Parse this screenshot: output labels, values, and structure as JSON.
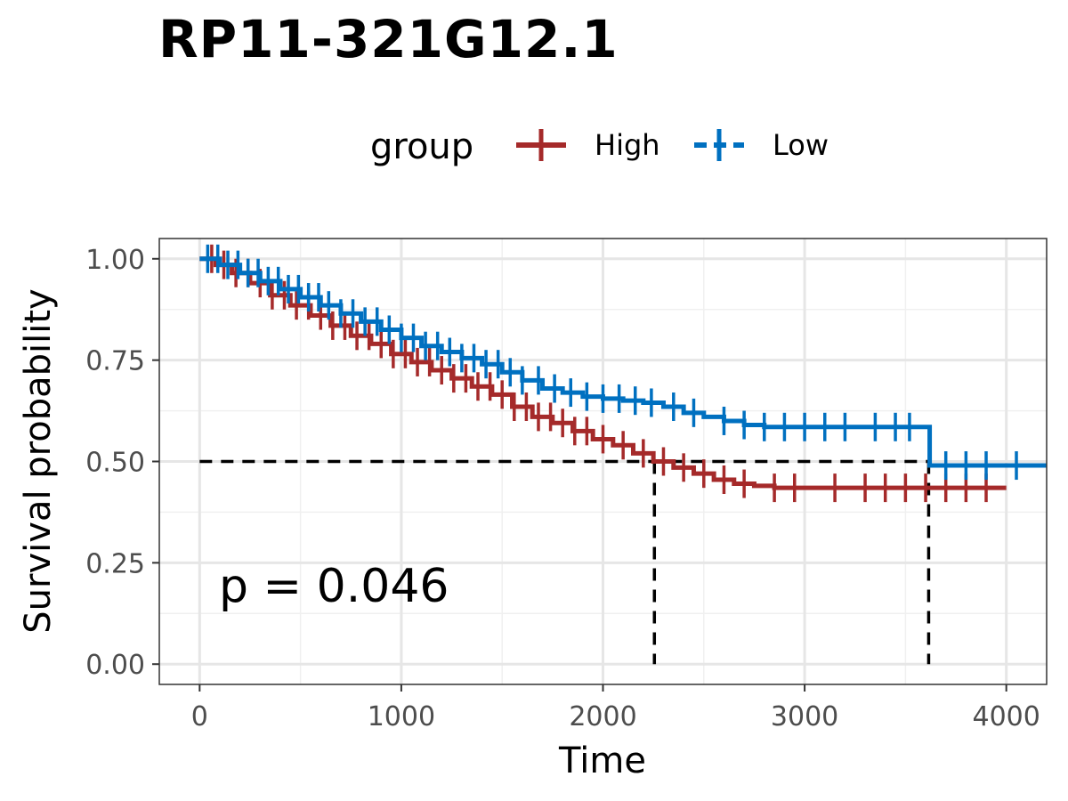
{
  "chart_data": {
    "type": "line",
    "subtype": "kaplan-meier",
    "title": "RP11-321G12.1",
    "xlabel": "Time",
    "ylabel": "Survival probability",
    "xlim": [
      -200,
      4200
    ],
    "ylim": [
      -0.05,
      1.05
    ],
    "x_ticks": [
      0,
      1000,
      2000,
      3000,
      4000
    ],
    "x_tick_labels": [
      "0",
      "1000",
      "2000",
      "3000",
      "4000"
    ],
    "y_ticks": [
      0,
      0.25,
      0.5,
      0.75,
      1.0
    ],
    "y_tick_labels": [
      "0.00",
      "0.25",
      "0.50",
      "0.75",
      "1.00"
    ],
    "grid": true,
    "legend": {
      "title": "group",
      "position": "top",
      "entries": [
        "High",
        "Low"
      ]
    },
    "annotation": "p = 0.046",
    "median_line": {
      "y": 0.5,
      "x": [
        2255,
        3615
      ]
    },
    "series": [
      {
        "name": "High",
        "color": "#A52A2A",
        "x": [
          0,
          80,
          160,
          250,
          350,
          450,
          550,
          650,
          750,
          850,
          950,
          1050,
          1150,
          1250,
          1350,
          1450,
          1550,
          1650,
          1750,
          1850,
          1950,
          2050,
          2150,
          2250,
          2350,
          2450,
          2550,
          2650,
          2750,
          2850,
          3000,
          3500,
          4000
        ],
        "y": [
          1.0,
          0.985,
          0.965,
          0.94,
          0.91,
          0.885,
          0.86,
          0.835,
          0.81,
          0.79,
          0.765,
          0.745,
          0.725,
          0.705,
          0.685,
          0.665,
          0.635,
          0.61,
          0.595,
          0.575,
          0.555,
          0.54,
          0.52,
          0.5,
          0.485,
          0.47,
          0.455,
          0.445,
          0.44,
          0.435,
          0.435,
          0.435,
          0.435
        ],
        "censor_x": [
          60,
          120,
          180,
          240,
          300,
          360,
          420,
          480,
          540,
          600,
          660,
          720,
          780,
          840,
          900,
          960,
          1020,
          1080,
          1140,
          1200,
          1260,
          1320,
          1380,
          1440,
          1500,
          1560,
          1620,
          1680,
          1740,
          1800,
          1860,
          1920,
          2000,
          2100,
          2200,
          2300,
          2400,
          2500,
          2600,
          2700,
          2850,
          2950,
          3150,
          3300,
          3400,
          3500,
          3600,
          3700,
          3800,
          3900
        ]
      },
      {
        "name": "Low",
        "color": "#0070C0",
        "x": [
          0,
          100,
          200,
          300,
          400,
          500,
          600,
          700,
          800,
          900,
          1000,
          1100,
          1200,
          1300,
          1400,
          1500,
          1600,
          1700,
          1800,
          1900,
          2000,
          2100,
          2200,
          2300,
          2400,
          2500,
          2600,
          2700,
          2800,
          3000,
          3200,
          3400,
          3600,
          3620,
          3700,
          4000,
          4200
        ],
        "y": [
          1.0,
          0.985,
          0.965,
          0.945,
          0.925,
          0.905,
          0.885,
          0.865,
          0.845,
          0.825,
          0.805,
          0.785,
          0.77,
          0.755,
          0.74,
          0.72,
          0.7,
          0.68,
          0.67,
          0.66,
          0.655,
          0.65,
          0.645,
          0.635,
          0.62,
          0.61,
          0.6,
          0.59,
          0.585,
          0.585,
          0.585,
          0.585,
          0.585,
          0.49,
          0.49,
          0.49,
          0.49
        ],
        "censor_x": [
          40,
          90,
          140,
          190,
          240,
          290,
          340,
          390,
          440,
          490,
          540,
          590,
          640,
          700,
          760,
          820,
          880,
          940,
          1000,
          1060,
          1120,
          1180,
          1240,
          1300,
          1360,
          1420,
          1480,
          1540,
          1600,
          1680,
          1760,
          1840,
          1920,
          2000,
          2080,
          2160,
          2240,
          2350,
          2450,
          2600,
          2700,
          2800,
          2900,
          3000,
          3100,
          3200,
          3350,
          3450,
          3520,
          3700,
          3800,
          3900,
          4050
        ]
      }
    ]
  }
}
